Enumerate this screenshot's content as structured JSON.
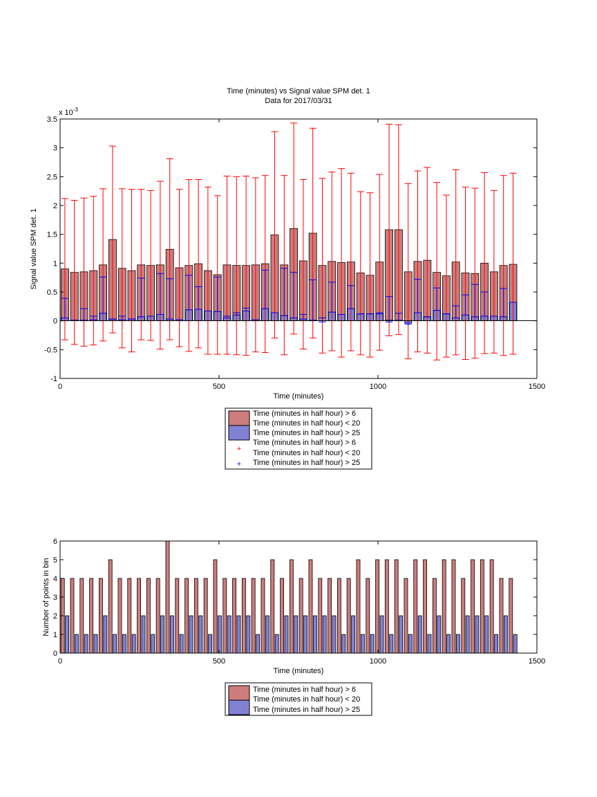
{
  "colors": {
    "red_fill": "#cd7c7c",
    "blue_fill": "#8181d4",
    "red_err": "#ff0000",
    "blue_err": "#0000ff",
    "edge": "#000000"
  },
  "chart_data": [
    {
      "type": "bar",
      "title": "Time (minutes) vs Signal value SPM det. 1",
      "subtitle": "Data for 2017/03/31",
      "xlabel": "Time (minutes)",
      "ylabel": "Signal value SPM det. 1",
      "y_multiplier_label": "x 10",
      "y_multiplier_exp": "-3",
      "xlim": [
        0,
        1500
      ],
      "ylim": [
        -1,
        3.5
      ],
      "x_ticks": [
        "0",
        "500",
        "1000",
        "1500"
      ],
      "y_ticks": [
        "-1",
        "-0.5",
        "0",
        "0.5",
        "1",
        "1.5",
        "2",
        "2.5",
        "3",
        "3.5"
      ],
      "grid": false,
      "legend_placement": "below",
      "legend": [
        "Time (minutes in half hour) > 6",
        "Time (minutes in half hour) < 20",
        "Time (minutes in half hour) > 25",
        "Time (minutes in half hour) > 6",
        "Time (minutes in half hour) < 20",
        "Time (minutes in half hour) > 25"
      ],
      "x": [
        15,
        45,
        75,
        105,
        135,
        165,
        195,
        225,
        255,
        285,
        315,
        345,
        375,
        405,
        435,
        465,
        495,
        525,
        555,
        585,
        615,
        645,
        675,
        705,
        735,
        765,
        795,
        825,
        855,
        885,
        915,
        945,
        975,
        1005,
        1035,
        1065,
        1095,
        1125,
        1155,
        1185,
        1215,
        1245,
        1275,
        1305,
        1335,
        1365,
        1395,
        1425
      ],
      "series": [
        {
          "values": [
            0.9,
            0.84,
            0.85,
            0.87,
            0.97,
            1.41,
            0.91,
            0.87,
            0.97,
            0.96,
            0.97,
            1.24,
            0.92,
            0.96,
            0.99,
            0.87,
            0.8,
            0.97,
            0.96,
            0.96,
            0.97,
            0.99,
            1.49,
            0.97,
            1.6,
            1.04,
            1.52,
            0.96,
            1.03,
            1.01,
            1.02,
            0.83,
            0.79,
            1.02,
            1.58,
            1.58,
            0.85,
            1.03,
            1.05,
            0.84,
            0.78,
            1.02,
            0.83,
            0.82,
            1.0,
            0.85,
            0.96,
            0.98
          ],
          "err_upper": [
            2.12,
            2.09,
            2.13,
            2.16,
            2.29,
            3.03,
            2.29,
            2.28,
            2.28,
            2.26,
            2.42,
            2.81,
            2.28,
            2.45,
            2.45,
            2.32,
            2.17,
            2.51,
            2.5,
            2.51,
            2.48,
            2.52,
            3.28,
            2.52,
            3.43,
            2.45,
            3.34,
            2.47,
            2.58,
            2.64,
            2.56,
            2.24,
            2.22,
            2.54,
            3.41,
            3.4,
            2.38,
            2.6,
            2.66,
            2.4,
            2.18,
            2.62,
            2.32,
            2.3,
            2.57,
            2.26,
            2.52,
            2.56
          ],
          "err_lower": [
            -0.33,
            -0.41,
            -0.44,
            -0.42,
            -0.35,
            -0.21,
            -0.47,
            -0.54,
            -0.33,
            -0.34,
            -0.49,
            -0.33,
            -0.45,
            -0.53,
            -0.47,
            -0.58,
            -0.58,
            -0.58,
            -0.59,
            -0.6,
            -0.54,
            -0.55,
            -0.3,
            -0.59,
            -0.23,
            -0.49,
            -0.3,
            -0.56,
            -0.52,
            -0.63,
            -0.52,
            -0.59,
            -0.63,
            -0.51,
            -0.26,
            -0.24,
            -0.66,
            -0.54,
            -0.56,
            -0.68,
            -0.63,
            -0.59,
            -0.67,
            -0.65,
            -0.57,
            -0.56,
            -0.6,
            -0.58
          ]
        },
        {
          "values": [
            0.05,
            0.01,
            0.01,
            0.02,
            0.13,
            0.03,
            0.02,
            0.03,
            0.07,
            0.08,
            0.11,
            0.03,
            0.02,
            0.19,
            0.2,
            0.17,
            0.16,
            0.05,
            0.1,
            0.17,
            0.02,
            0.21,
            0.14,
            0.09,
            0.05,
            0.03,
            0.01,
            0.0,
            0.15,
            0.11,
            0.21,
            0.12,
            0.12,
            0.12,
            0.01,
            0.01,
            -0.04,
            0.14,
            0.07,
            0.18,
            0.12,
            0.05,
            0.1,
            0.07,
            0.08,
            0.08,
            0.07,
            0.32
          ],
          "err_upper": [
            0.39,
            0.01,
            0.21,
            0.08,
            0.76,
            0.03,
            0.08,
            0.03,
            0.74,
            0.08,
            0.82,
            0.73,
            0.02,
            0.79,
            0.59,
            0.17,
            0.76,
            0.08,
            0.14,
            0.22,
            0.02,
            0.88,
            0.14,
            0.91,
            0.84,
            0.11,
            0.71,
            0.05,
            0.67,
            0.11,
            0.61,
            0.12,
            0.12,
            0.14,
            0.42,
            0.13,
            -0.04,
            0.72,
            0.07,
            0.57,
            0.12,
            0.26,
            0.45,
            0.63,
            0.5,
            0.08,
            0.56,
            0.32
          ],
          "err_lower": [
            0.05,
            0.01,
            0.01,
            0.02,
            0.13,
            0.03,
            0.02,
            0.03,
            0.07,
            0.08,
            0.11,
            0.03,
            0.02,
            0.19,
            0.2,
            0.17,
            0.16,
            0.05,
            0.1,
            0.17,
            0.02,
            0.21,
            0.14,
            0.09,
            0.05,
            0.03,
            0.01,
            -0.02,
            0.15,
            0.11,
            0.21,
            0.12,
            0.12,
            0.12,
            -0.02,
            0.01,
            -0.06,
            0.14,
            0.07,
            0.18,
            0.12,
            0.05,
            0.1,
            0.07,
            0.08,
            0.08,
            0.07,
            0.32
          ]
        }
      ]
    },
    {
      "type": "bar",
      "xlabel": "Time (minutes)",
      "ylabel": "Number of points in bin",
      "xlim": [
        0,
        1500
      ],
      "ylim": [
        0,
        6
      ],
      "x_ticks": [
        "0",
        "500",
        "1000",
        "1500"
      ],
      "y_ticks": [
        "0",
        "1",
        "2",
        "3",
        "4",
        "5",
        "6"
      ],
      "grid": false,
      "legend_placement": "below",
      "legend": [
        "Time (minutes in half hour) > 6",
        "Time (minutes in half hour) < 20",
        "Time (minutes in half hour) > 25"
      ],
      "x": [
        15,
        45,
        75,
        105,
        135,
        165,
        195,
        225,
        255,
        285,
        315,
        345,
        375,
        405,
        435,
        465,
        495,
        525,
        555,
        585,
        615,
        645,
        675,
        705,
        735,
        765,
        795,
        825,
        855,
        885,
        915,
        945,
        975,
        1005,
        1035,
        1065,
        1095,
        1125,
        1155,
        1185,
        1215,
        1245,
        1275,
        1305,
        1335,
        1365,
        1395,
        1425
      ],
      "series": [
        {
          "values": [
            4,
            4,
            4,
            4,
            4,
            5,
            4,
            4,
            4,
            4,
            4,
            6,
            4,
            4,
            4,
            4,
            5,
            4,
            4,
            4,
            4,
            4,
            5,
            4,
            5,
            4,
            5,
            4,
            4,
            4,
            4,
            5,
            4,
            5,
            5,
            5,
            4,
            5,
            5,
            4,
            5,
            5,
            4,
            5,
            5,
            5,
            4,
            4
          ]
        },
        {
          "values": [
            2,
            1,
            1,
            1,
            2,
            1,
            1,
            1,
            2,
            1,
            2,
            2,
            1,
            2,
            2,
            1,
            2,
            2,
            2,
            2,
            1,
            2,
            1,
            2,
            2,
            2,
            2,
            2,
            2,
            1,
            2,
            1,
            1,
            2,
            1,
            2,
            1,
            2,
            1,
            2,
            1,
            1,
            2,
            2,
            2,
            1,
            2,
            1
          ]
        }
      ]
    }
  ]
}
